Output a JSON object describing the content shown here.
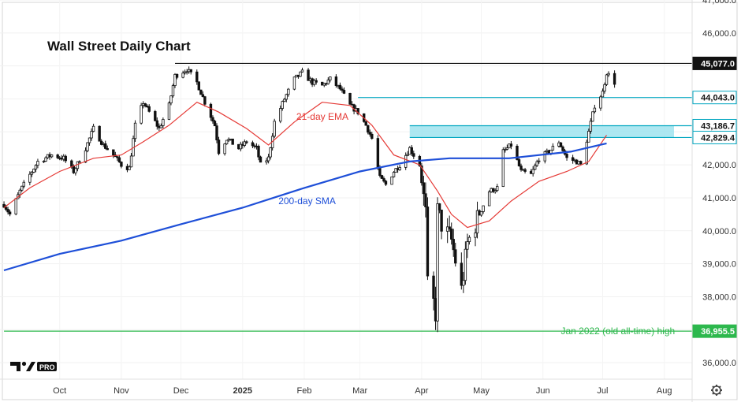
{
  "chart_data": {
    "type": "candlestick",
    "title": "Wall Street Daily Chart",
    "ylim": [
      35500,
      47000
    ],
    "y_ticks": [
      "36,000.0",
      "37,000.0",
      "38,000.0",
      "39,000.0",
      "40,000.0",
      "41,000.0",
      "42,000.0",
      "43,000.0",
      "44,000.0",
      "45,000.0",
      "46,000.0",
      "47,000.0"
    ],
    "y_tick_values": [
      36000,
      37000,
      38000,
      39000,
      40000,
      41000,
      42000,
      43000,
      44000,
      45000,
      46000,
      47000
    ],
    "x_ticks": [
      {
        "label": "Oct",
        "date": "2024-10-01"
      },
      {
        "label": "Nov",
        "date": "2024-11-01"
      },
      {
        "label": "Dec",
        "date": "2024-12-01"
      },
      {
        "label": "2025",
        "date": "2025-01-01"
      },
      {
        "label": "Feb",
        "date": "2025-02-01"
      },
      {
        "label": "Mar",
        "date": "2025-03-01"
      },
      {
        "label": "Apr",
        "date": "2025-04-01"
      },
      {
        "label": "May",
        "date": "2025-05-01"
      },
      {
        "label": "Jun",
        "date": "2025-06-01"
      },
      {
        "label": "Jul",
        "date": "2025-07-01"
      },
      {
        "label": "Aug",
        "date": "2025-08-01"
      }
    ],
    "close_path": [
      [
        "2024-09-03",
        40800
      ],
      [
        "2024-09-06",
        40500
      ],
      [
        "2024-09-11",
        41200
      ],
      [
        "2024-09-16",
        41700
      ],
      [
        "2024-09-20",
        42100
      ],
      [
        "2024-09-27",
        42300
      ],
      [
        "2024-10-03",
        42200
      ],
      [
        "2024-10-08",
        41800
      ],
      [
        "2024-10-14",
        42500
      ],
      [
        "2024-10-18",
        43100
      ],
      [
        "2024-10-23",
        42600
      ],
      [
        "2024-10-28",
        42300
      ],
      [
        "2024-11-01",
        42000
      ],
      [
        "2024-11-05",
        41900
      ],
      [
        "2024-11-08",
        43200
      ],
      [
        "2024-11-12",
        43900
      ],
      [
        "2024-11-15",
        43600
      ],
      [
        "2024-11-20",
        43100
      ],
      [
        "2024-11-25",
        43800
      ],
      [
        "2024-11-28",
        44700
      ],
      [
        "2024-12-04",
        44900
      ],
      [
        "2024-12-09",
        44500
      ],
      [
        "2024-12-13",
        43900
      ],
      [
        "2024-12-18",
        43200
      ],
      [
        "2024-12-20",
        42400
      ],
      [
        "2024-12-24",
        42800
      ],
      [
        "2024-12-30",
        42500
      ],
      [
        "2025-01-03",
        42700
      ],
      [
        "2025-01-08",
        42500
      ],
      [
        "2025-01-10",
        42000
      ],
      [
        "2025-01-14",
        42200
      ],
      [
        "2025-01-17",
        43300
      ],
      [
        "2025-01-22",
        44000
      ],
      [
        "2025-01-27",
        44600
      ],
      [
        "2025-01-31",
        44800
      ],
      [
        "2025-02-05",
        44500
      ],
      [
        "2025-02-10",
        44400
      ],
      [
        "2025-02-14",
        44600
      ],
      [
        "2025-02-19",
        44300
      ],
      [
        "2025-02-24",
        43800
      ],
      [
        "2025-02-28",
        43600
      ],
      [
        "2025-03-04",
        43200
      ],
      [
        "2025-03-07",
        42800
      ],
      [
        "2025-03-11",
        41600
      ],
      [
        "2025-03-14",
        41400
      ],
      [
        "2025-03-18",
        41800
      ],
      [
        "2025-03-21",
        42000
      ],
      [
        "2025-03-26",
        42500
      ],
      [
        "2025-03-31",
        42000
      ],
      [
        "2025-04-03",
        40500
      ],
      [
        "2025-04-04",
        38300
      ],
      [
        "2025-04-07",
        37800
      ],
      [
        "2025-04-08",
        37500
      ],
      [
        "2025-04-09",
        40600
      ],
      [
        "2025-04-11",
        40200
      ],
      [
        "2025-04-16",
        39700
      ],
      [
        "2025-04-21",
        38200
      ],
      [
        "2025-04-24",
        39600
      ],
      [
        "2025-04-30",
        40500
      ],
      [
        "2025-05-05",
        41200
      ],
      [
        "2025-05-09",
        41300
      ],
      [
        "2025-05-12",
        42400
      ],
      [
        "2025-05-16",
        42600
      ],
      [
        "2025-05-21",
        41800
      ],
      [
        "2025-05-26",
        41700
      ],
      [
        "2025-05-30",
        42200
      ],
      [
        "2025-06-04",
        42400
      ],
      [
        "2025-06-09",
        42700
      ],
      [
        "2025-06-13",
        42200
      ],
      [
        "2025-06-18",
        42100
      ],
      [
        "2025-06-20",
        42000
      ],
      [
        "2025-06-24",
        43000
      ],
      [
        "2025-06-27",
        43800
      ],
      [
        "2025-07-01",
        44200
      ],
      [
        "2025-07-03",
        44800
      ],
      [
        "2025-07-07",
        44500
      ]
    ],
    "series": [
      {
        "name": "21-day EMA",
        "color": "#e53935",
        "points": [
          [
            "2024-09-03",
            40700
          ],
          [
            "2024-09-16",
            41300
          ],
          [
            "2024-10-01",
            41800
          ],
          [
            "2024-10-18",
            42200
          ],
          [
            "2024-11-01",
            42300
          ],
          [
            "2024-11-12",
            42700
          ],
          [
            "2024-11-25",
            43200
          ],
          [
            "2024-12-09",
            43900
          ],
          [
            "2024-12-20",
            43600
          ],
          [
            "2025-01-03",
            43100
          ],
          [
            "2025-01-14",
            42600
          ],
          [
            "2025-01-27",
            43300
          ],
          [
            "2025-02-10",
            43900
          ],
          [
            "2025-02-24",
            43800
          ],
          [
            "2025-03-07",
            43200
          ],
          [
            "2025-03-18",
            42300
          ],
          [
            "2025-03-31",
            42000
          ],
          [
            "2025-04-09",
            41200
          ],
          [
            "2025-04-16",
            40500
          ],
          [
            "2025-04-24",
            40100
          ],
          [
            "2025-05-05",
            40300
          ],
          [
            "2025-05-16",
            40900
          ],
          [
            "2025-05-30",
            41500
          ],
          [
            "2025-06-13",
            41800
          ],
          [
            "2025-06-24",
            42100
          ],
          [
            "2025-07-03",
            42900
          ]
        ]
      },
      {
        "name": "200-day SMA",
        "color": "#1e4fd8",
        "points": [
          [
            "2024-09-03",
            38800
          ],
          [
            "2024-10-01",
            39300
          ],
          [
            "2024-11-01",
            39700
          ],
          [
            "2024-12-01",
            40200
          ],
          [
            "2025-01-01",
            40700
          ],
          [
            "2025-02-01",
            41300
          ],
          [
            "2025-03-01",
            41800
          ],
          [
            "2025-03-26",
            42100
          ],
          [
            "2025-04-15",
            42200
          ],
          [
            "2025-05-15",
            42200
          ],
          [
            "2025-06-15",
            42400
          ],
          [
            "2025-07-03",
            42650
          ]
        ]
      }
    ],
    "levels": [
      {
        "label": "45,077.0",
        "value": 45077,
        "line_color": "#111111",
        "badge_bg": "#111111",
        "badge_fg": "#ffffff",
        "start": "2024-11-28"
      },
      {
        "label": "44,043.0",
        "value": 44043,
        "line_color": "#00a6c0",
        "badge_bg": "#ffffff",
        "badge_fg": "#111111",
        "start": "2025-02-28"
      },
      {
        "label": "43,186.7",
        "value": 43187,
        "line_color": "#00a6c0",
        "badge_bg": "#ffffff",
        "badge_fg": "#111111",
        "start": "2025-03-26"
      },
      {
        "label": "42,829.4",
        "value": 42829,
        "line_color": "#00a6c0",
        "badge_bg": "#ffffff",
        "badge_fg": "#111111",
        "start": "2025-03-26"
      },
      {
        "label": "36,955.5",
        "value": 36955,
        "line_color": "#2db84d",
        "badge_bg": "#2db84d",
        "badge_fg": "#ffffff",
        "start": "2024-09-03"
      }
    ],
    "zone": {
      "from": 42829,
      "to": 43187,
      "start": "2025-03-26",
      "color": "#9fe3ee"
    },
    "annotations": [
      {
        "text": "21-day EMA",
        "color": "#e53935",
        "date": "2025-01-28",
        "value": 43460
      },
      {
        "text": "200-day SMA",
        "color": "#1e4fd8",
        "date": "2025-01-19",
        "value": 40900
      },
      {
        "text": "Jan 2022 (old all-time) high",
        "color": "#2db84d",
        "date": "2025-06-10",
        "value": 36960
      }
    ],
    "watermark": "TV PRO"
  },
  "icons": {
    "settings": "gear-icon"
  }
}
